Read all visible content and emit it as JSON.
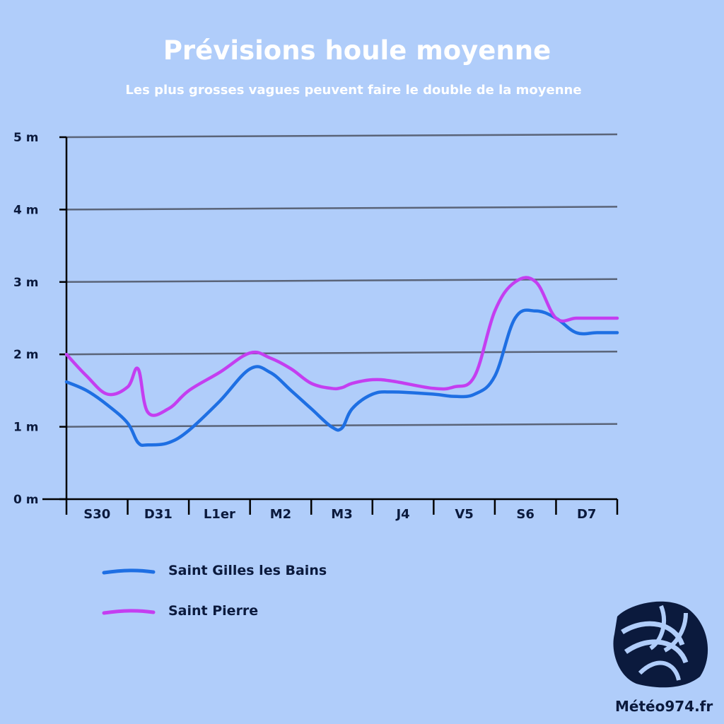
{
  "chart_data": {
    "type": "line",
    "title": "Prévisions houle moyenne",
    "subtitle": "Les plus grosses vagues peuvent faire le double de la moyenne",
    "categories": [
      "S30",
      "D31",
      "L1er",
      "M2",
      "M3",
      "J4",
      "V5",
      "S6",
      "D7"
    ],
    "y_ticks": [
      "0 m",
      "1 m",
      "2 m",
      "3 m",
      "4 m",
      "5 m"
    ],
    "ylim": [
      0,
      5
    ],
    "grid": true,
    "x": [
      0,
      0.33,
      0.67,
      1,
      1.17,
      1.33,
      1.67,
      2,
      2.5,
      3,
      3.33,
      3.67,
      4,
      4.33,
      4.5,
      4.67,
      5,
      5.33,
      6,
      6.33,
      6.67,
      7,
      7.33,
      7.67,
      8,
      8.33,
      8.67,
      9
    ],
    "series": [
      {
        "name": "Saint Gilles les Bains",
        "color": "#1e6fe3",
        "values": [
          1.62,
          1.5,
          1.3,
          1.05,
          0.78,
          0.75,
          0.78,
          0.95,
          1.35,
          1.8,
          1.75,
          1.5,
          1.25,
          1.0,
          0.98,
          1.25,
          1.45,
          1.48,
          1.45,
          1.42,
          1.45,
          1.7,
          2.5,
          2.6,
          2.5,
          2.3,
          2.3,
          2.3
        ]
      },
      {
        "name": "Saint Pierre",
        "color": "#c43ef0",
        "values": [
          2.0,
          1.7,
          1.45,
          1.55,
          1.8,
          1.2,
          1.25,
          1.5,
          1.75,
          2.02,
          1.95,
          1.8,
          1.6,
          1.53,
          1.54,
          1.6,
          1.65,
          1.63,
          1.53,
          1.55,
          1.7,
          2.6,
          3.0,
          3.0,
          2.5,
          2.5,
          2.5,
          2.5
        ]
      }
    ],
    "legend_position": "bottom-left"
  },
  "brand": "Météo974.fr",
  "colors": {
    "background": "#b0cdfa",
    "grid": "#5a6478",
    "axis": "#000000",
    "text_dark": "#0b1a3d",
    "logo": "#0b1a3d"
  }
}
